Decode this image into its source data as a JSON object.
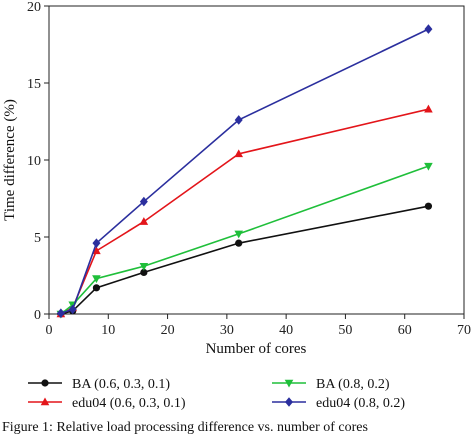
{
  "chart_data": {
    "type": "line",
    "title": "",
    "xlabel": "Number of cores",
    "ylabel": "Time difference (%)",
    "xlim": [
      0,
      70
    ],
    "ylim": [
      0,
      20
    ],
    "xticks": [
      0,
      10,
      20,
      30,
      40,
      50,
      60,
      70
    ],
    "yticks": [
      0,
      5,
      10,
      15,
      20
    ],
    "grid": false,
    "legend_position": "below",
    "series": [
      {
        "name": "BA (0.6, 0.3, 0.1)",
        "color": "#111111",
        "marker": "circle",
        "x": [
          2,
          4,
          8,
          16,
          32,
          64
        ],
        "y": [
          0.0,
          0.2,
          1.7,
          2.7,
          4.6,
          7.0
        ]
      },
      {
        "name": "edu04 (0.6, 0.3, 0.1)",
        "color": "#e3151a",
        "marker": "triangle-up",
        "x": [
          2,
          4,
          8,
          16,
          32,
          64
        ],
        "y": [
          0.0,
          0.4,
          4.1,
          6.0,
          10.4,
          13.3
        ]
      },
      {
        "name": "BA (0.8, 0.2)",
        "color": "#1fbf3a",
        "marker": "triangle-down",
        "x": [
          2,
          4,
          8,
          16,
          32,
          64
        ],
        "y": [
          0.0,
          0.6,
          2.3,
          3.1,
          5.2,
          9.6
        ]
      },
      {
        "name": "edu04 (0.8, 0.2)",
        "color": "#2b2f9e",
        "marker": "diamond",
        "x": [
          2,
          4,
          8,
          16,
          32,
          64
        ],
        "y": [
          0.05,
          0.3,
          4.6,
          7.3,
          12.6,
          18.5
        ]
      }
    ]
  },
  "caption": "Figure 1: Relative load processing difference vs. number of cores"
}
